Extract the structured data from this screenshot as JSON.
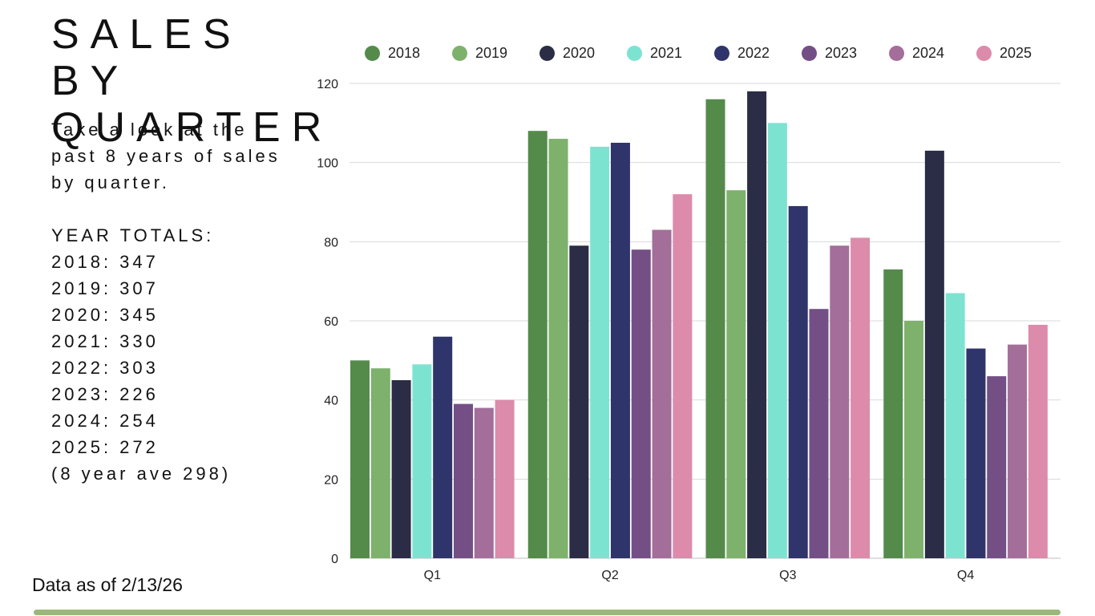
{
  "page": {
    "title_line1": "SALES BY",
    "title_line2": "QUARTER",
    "subtitle_line1": "Take a look at the",
    "subtitle_line2": "past 8 years of sales",
    "subtitle_line3": "by quarter.",
    "totals_heading": "YEAR TOTALS:",
    "totals": [
      "2018: 347",
      "2019: 307",
      "2020: 345",
      "2021: 330",
      "2022: 303",
      "2023: 226",
      "2024: 254",
      "2025: 272"
    ],
    "average_note": "(8 year ave 298)",
    "footnote": "Data as of 2/13/26",
    "accent_color": "#9bb779"
  },
  "chart_data": {
    "type": "bar",
    "title": "SALES BY QUARTER",
    "xlabel": "",
    "ylabel": "",
    "ylim": [
      0,
      120
    ],
    "yticks": [
      0,
      20,
      40,
      60,
      80,
      100,
      120
    ],
    "grid": true,
    "legend_position": "top",
    "categories": [
      "Q1",
      "Q2",
      "Q3",
      "Q4"
    ],
    "series": [
      {
        "name": "2018",
        "color": "#548b4b",
        "values": [
          50,
          108,
          116,
          73
        ]
      },
      {
        "name": "2019",
        "color": "#7db16c",
        "values": [
          48,
          106,
          93,
          60
        ]
      },
      {
        "name": "2020",
        "color": "#2b2c45",
        "values": [
          45,
          79,
          118,
          103
        ]
      },
      {
        "name": "2021",
        "color": "#7de3d1",
        "values": [
          49,
          104,
          110,
          67
        ]
      },
      {
        "name": "2022",
        "color": "#2f346a",
        "values": [
          56,
          105,
          89,
          53
        ]
      },
      {
        "name": "2023",
        "color": "#744f86",
        "values": [
          39,
          78,
          63,
          46
        ]
      },
      {
        "name": "2024",
        "color": "#a36e99",
        "values": [
          38,
          83,
          79,
          54
        ]
      },
      {
        "name": "2025",
        "color": "#dc8bab",
        "values": [
          40,
          92,
          81,
          59
        ]
      }
    ]
  }
}
